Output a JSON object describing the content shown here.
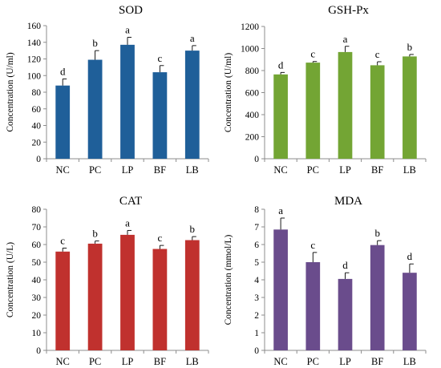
{
  "chart_data": [
    {
      "type": "bar",
      "title": "SOD",
      "ylabel": "Concentration (U/ml)",
      "categories": [
        "NC",
        "PC",
        "LP",
        "BF",
        "LB"
      ],
      "values": [
        88,
        119,
        137,
        104,
        130
      ],
      "errors": [
        8,
        11,
        9,
        8,
        6
      ],
      "labels": [
        "d",
        "b",
        "a",
        "c",
        "a"
      ],
      "ylim": [
        0,
        160
      ],
      "yticks": [
        0,
        20,
        40,
        60,
        80,
        100,
        120,
        140,
        160
      ],
      "color": "#1f5f99"
    },
    {
      "type": "bar",
      "title": "GSH-Px",
      "ylabel": "Concentration (U/ml)",
      "categories": [
        "NC",
        "PC",
        "LP",
        "BF",
        "LB"
      ],
      "values": [
        765,
        872,
        968,
        848,
        928
      ],
      "errors": [
        18,
        10,
        52,
        32,
        18
      ],
      "labels": [
        "d",
        "c",
        "a",
        "c",
        "b"
      ],
      "ylim": [
        0,
        1200
      ],
      "yticks": [
        0,
        200,
        400,
        600,
        800,
        1000,
        1200
      ],
      "color": "#73a534"
    },
    {
      "type": "bar",
      "title": "CAT",
      "ylabel": "Concentration (U/L)",
      "categories": [
        "NC",
        "PC",
        "LP",
        "BF",
        "LB"
      ],
      "values": [
        56,
        60.5,
        65.5,
        57.5,
        62.5
      ],
      "errors": [
        2,
        1.5,
        2.5,
        2,
        2
      ],
      "labels": [
        "c",
        "b",
        "a",
        "c",
        "b"
      ],
      "ylim": [
        0,
        80
      ],
      "yticks": [
        0,
        10,
        20,
        30,
        40,
        50,
        60,
        70,
        80
      ],
      "color": "#c0312e"
    },
    {
      "type": "bar",
      "title": "MDA",
      "ylabel": "Concentration (mmol/L)",
      "categories": [
        "NC",
        "PC",
        "LP",
        "BF",
        "LB"
      ],
      "values": [
        6.85,
        5.0,
        4.05,
        5.97,
        4.4
      ],
      "errors": [
        0.65,
        0.55,
        0.35,
        0.25,
        0.5
      ],
      "labels": [
        "a",
        "c",
        "d",
        "b",
        "d"
      ],
      "ylim": [
        0,
        8
      ],
      "yticks": [
        0,
        1,
        2,
        3,
        4,
        5,
        6,
        7,
        8
      ],
      "color": "#6a4c8c"
    }
  ]
}
